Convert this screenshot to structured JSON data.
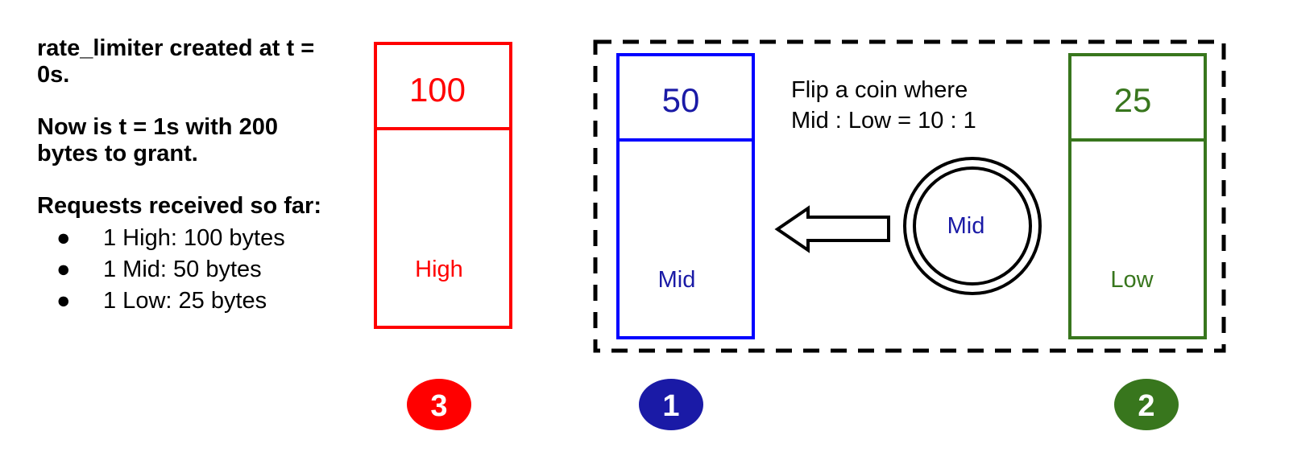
{
  "notes": {
    "line1": "rate_limiter created at t = 0s.",
    "line2": "Now is t = 1s with 200 bytes to grant.",
    "line3": "Requests received so far:",
    "bullets": [
      "1 High: 100 bytes",
      "1 Mid: 50 bytes",
      "1 Low: 25 bytes"
    ],
    "bullet_glyph": "●"
  },
  "buckets": {
    "high": {
      "value": "100",
      "label": "High",
      "order": "3",
      "color": "#ff0000"
    },
    "mid": {
      "value": "50",
      "label": "Mid",
      "order": "1",
      "color": "#0000ff",
      "badge_color": "#1a1aa6"
    },
    "low": {
      "value": "25",
      "label": "Low",
      "order": "2",
      "color": "#38761d"
    }
  },
  "coin": {
    "text_line1": "Flip a coin where",
    "text_line2": "Mid : Low = 10 : 1",
    "result": "Mid",
    "result_color": "#1a1aa6"
  }
}
